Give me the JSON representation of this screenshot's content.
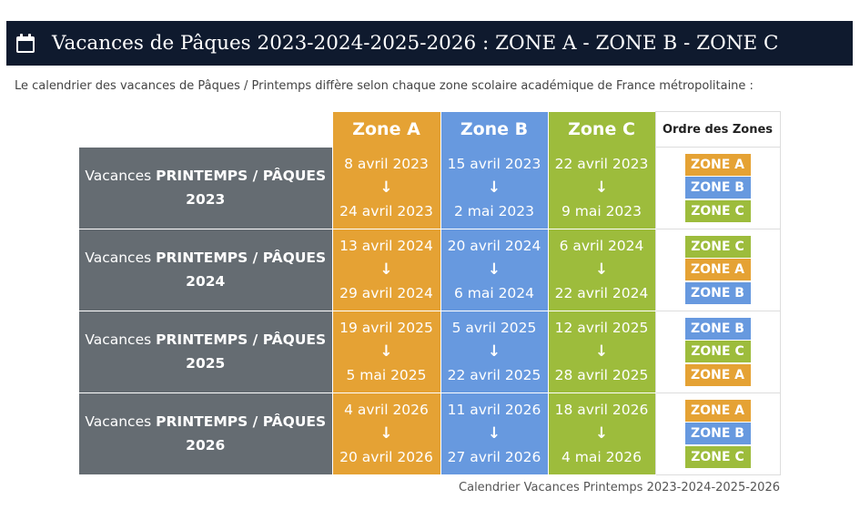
{
  "header": {
    "title": "Vacances de Pâques 2023-2024-2025-2026 : ZONE A - ZONE B - ZONE C",
    "icon": "calendar-icon"
  },
  "intro": "Le calendrier des vacances de Pâques / Printemps diffère selon chaque zone scolaire académique de France métropolitaine :",
  "table": {
    "headers": {
      "zone_a": "Zone A",
      "zone_b": "Zone B",
      "zone_c": "Zone C",
      "order": "Ordre des Zones"
    },
    "arrow": "↓",
    "rows": [
      {
        "label_pre": "Vacances ",
        "label_bold": "PRINTEMPS / PÂQUES",
        "year": "2023",
        "a": {
          "start": "8 avril 2023",
          "end": "24 avril 2023"
        },
        "b": {
          "start": "15 avril 2023",
          "end": "2 mai 2023"
        },
        "c": {
          "start": "22 avril 2023",
          "end": "9 mai 2023"
        },
        "order": [
          "ZONE A",
          "ZONE B",
          "ZONE C"
        ]
      },
      {
        "label_pre": "Vacances ",
        "label_bold": "PRINTEMPS / PÂQUES",
        "year": "2024",
        "a": {
          "start": "13 avril 2024",
          "end": "29 avril 2024"
        },
        "b": {
          "start": "20 avril 2024",
          "end": "6 mai 2024"
        },
        "c": {
          "start": "6 avril 2024",
          "end": "22 avril 2024"
        },
        "order": [
          "ZONE C",
          "ZONE A",
          "ZONE B"
        ]
      },
      {
        "label_pre": "Vacances ",
        "label_bold": "PRINTEMPS / PÂQUES",
        "year": "2025",
        "a": {
          "start": "19 avril 2025",
          "end": "5 mai 2025"
        },
        "b": {
          "start": "5 avril 2025",
          "end": "22 avril 2025"
        },
        "c": {
          "start": "12 avril 2025",
          "end": "28 avril 2025"
        },
        "order": [
          "ZONE B",
          "ZONE C",
          "ZONE A"
        ]
      },
      {
        "label_pre": "Vacances ",
        "label_bold": "PRINTEMPS / PÂQUES",
        "year": "2026",
        "a": {
          "start": "4 avril 2026",
          "end": "20 avril 2026"
        },
        "b": {
          "start": "11 avril 2026",
          "end": "27 avril 2026"
        },
        "c": {
          "start": "18 avril 2026",
          "end": "4 mai 2026"
        },
        "order": [
          "ZONE A",
          "ZONE B",
          "ZONE C"
        ]
      }
    ]
  },
  "caption": "Calendrier Vacances Printemps 2023-2024-2025-2026",
  "colors": {
    "header_bg": "#0f1a2e",
    "zone_a": "#e5a234",
    "zone_b": "#6799df",
    "zone_c": "#9dbc3c",
    "label_bg": "#656c72"
  }
}
